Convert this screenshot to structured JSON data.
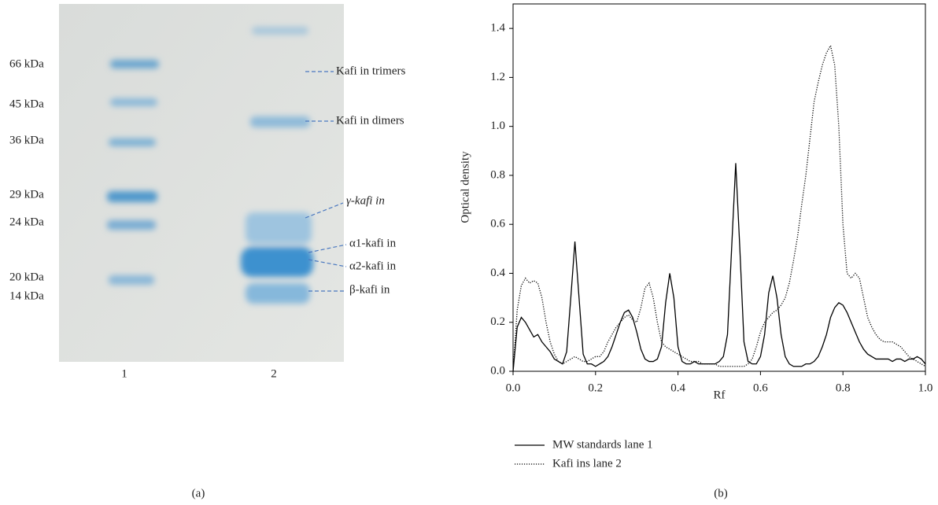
{
  "gel": {
    "mw_labels": [
      "66 kDa",
      "45 kDa",
      "36 kDa",
      "29 kDa",
      "24 kDa",
      "20 kDa",
      "14 kDa"
    ],
    "lane_labels": [
      "1",
      "2"
    ],
    "annotations": [
      "Kafi in trimers",
      "Kafi in dimers",
      "γ-kafi in",
      "α1-kafi in",
      "α2-kafi in",
      "β-kafi in"
    ],
    "panel_label": "(a)"
  },
  "chart_data": {
    "type": "line",
    "panel_label": "(b)",
    "x_label": "Rf",
    "y_label": "Optical density",
    "xlim": [
      0,
      1
    ],
    "ylim": [
      0,
      1.5
    ],
    "xticks": [
      {
        "value": 0,
        "label": "0.0"
      },
      0.2,
      0.4,
      0.6,
      0.8,
      {
        "value": 1,
        "label": "1.0"
      }
    ],
    "yticks": [
      {
        "value": 0,
        "label": "0.0"
      },
      0.2,
      0.4,
      0.6,
      0.8,
      {
        "value": 1,
        "label": "1.0"
      },
      1.2,
      1.4
    ],
    "x": [
      0,
      0.01,
      0.02,
      0.03,
      0.04,
      0.05,
      0.06,
      0.07,
      0.08,
      0.09,
      0.1,
      0.11,
      0.12,
      0.13,
      0.14,
      0.15,
      0.16,
      0.17,
      0.18,
      0.19,
      0.2,
      0.21,
      0.22,
      0.23,
      0.24,
      0.25,
      0.26,
      0.27,
      0.28,
      0.29,
      0.3,
      0.31,
      0.32,
      0.33,
      0.34,
      0.35,
      0.36,
      0.37,
      0.38,
      0.39,
      0.4,
      0.41,
      0.42,
      0.43,
      0.44,
      0.45,
      0.46,
      0.47,
      0.48,
      0.49,
      0.5,
      0.51,
      0.52,
      0.53,
      0.54,
      0.55,
      0.56,
      0.57,
      0.58,
      0.59,
      0.6,
      0.61,
      0.62,
      0.63,
      0.64,
      0.65,
      0.66,
      0.67,
      0.68,
      0.69,
      0.7,
      0.71,
      0.72,
      0.73,
      0.74,
      0.75,
      0.76,
      0.77,
      0.78,
      0.79,
      0.8,
      0.81,
      0.82,
      0.83,
      0.84,
      0.85,
      0.86,
      0.87,
      0.88,
      0.89,
      0.9,
      0.91,
      0.92,
      0.93,
      0.94,
      0.95,
      0.96,
      0.97,
      0.98,
      0.99,
      1
    ],
    "series": [
      {
        "name": "MW standards lane 1",
        "color": "#000000",
        "dash": "solid",
        "values": [
          0,
          0.18,
          0.22,
          0.2,
          0.17,
          0.14,
          0.15,
          0.12,
          0.1,
          0.08,
          0.05,
          0.04,
          0.03,
          0.08,
          0.3,
          0.53,
          0.3,
          0.07,
          0.03,
          0.03,
          0.02,
          0.03,
          0.04,
          0.06,
          0.1,
          0.15,
          0.2,
          0.24,
          0.25,
          0.22,
          0.16,
          0.09,
          0.05,
          0.04,
          0.04,
          0.05,
          0.1,
          0.28,
          0.4,
          0.3,
          0.1,
          0.04,
          0.03,
          0.03,
          0.04,
          0.03,
          0.03,
          0.03,
          0.03,
          0.03,
          0.04,
          0.06,
          0.15,
          0.5,
          0.85,
          0.5,
          0.12,
          0.04,
          0.03,
          0.03,
          0.06,
          0.15,
          0.32,
          0.39,
          0.3,
          0.15,
          0.06,
          0.03,
          0.02,
          0.02,
          0.02,
          0.03,
          0.03,
          0.04,
          0.06,
          0.1,
          0.15,
          0.22,
          0.26,
          0.28,
          0.27,
          0.24,
          0.2,
          0.16,
          0.12,
          0.09,
          0.07,
          0.06,
          0.05,
          0.05,
          0.05,
          0.05,
          0.04,
          0.05,
          0.05,
          0.04,
          0.05,
          0.05,
          0.06,
          0.05,
          0.03
        ]
      },
      {
        "name": "Kafi ins lane 2",
        "color": "#000000",
        "dash": "dotted",
        "values": [
          0,
          0.25,
          0.35,
          0.38,
          0.36,
          0.37,
          0.36,
          0.3,
          0.2,
          0.12,
          0.07,
          0.04,
          0.03,
          0.04,
          0.05,
          0.06,
          0.05,
          0.04,
          0.04,
          0.05,
          0.06,
          0.06,
          0.08,
          0.12,
          0.15,
          0.18,
          0.2,
          0.22,
          0.23,
          0.21,
          0.2,
          0.26,
          0.34,
          0.36,
          0.3,
          0.2,
          0.12,
          0.1,
          0.09,
          0.08,
          0.07,
          0.06,
          0.05,
          0.04,
          0.04,
          0.04,
          0.03,
          0.03,
          0.03,
          0.03,
          0.02,
          0.02,
          0.02,
          0.02,
          0.02,
          0.02,
          0.02,
          0.03,
          0.05,
          0.1,
          0.16,
          0.2,
          0.22,
          0.24,
          0.25,
          0.27,
          0.3,
          0.36,
          0.45,
          0.55,
          0.68,
          0.8,
          0.95,
          1.1,
          1.18,
          1.25,
          1.3,
          1.33,
          1.25,
          1,
          0.6,
          0.4,
          0.38,
          0.4,
          0.38,
          0.3,
          0.22,
          0.18,
          0.15,
          0.13,
          0.12,
          0.12,
          0.12,
          0.11,
          0.1,
          0.08,
          0.06,
          0.05,
          0.04,
          0.03,
          0.02
        ]
      }
    ]
  }
}
